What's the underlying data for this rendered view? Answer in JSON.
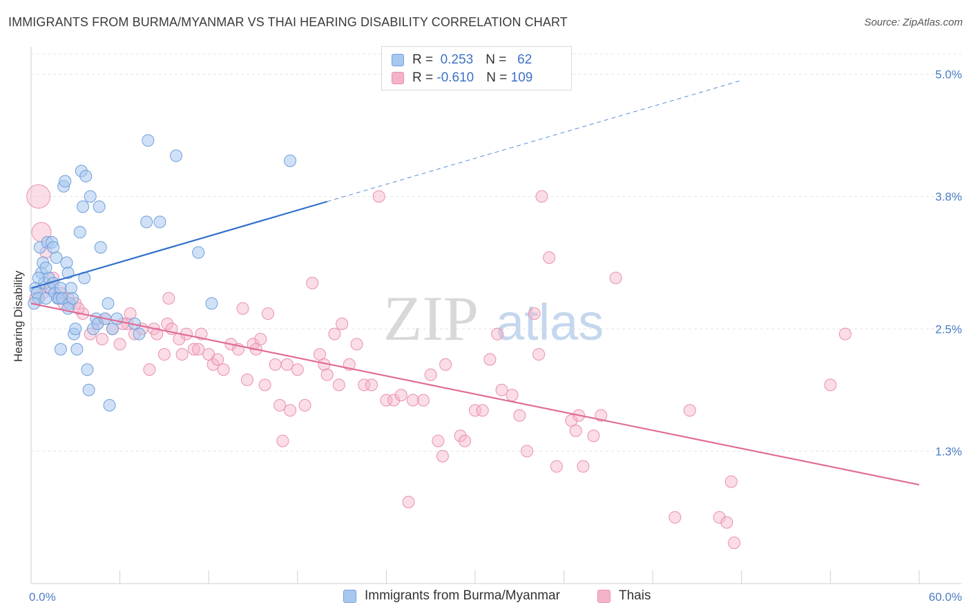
{
  "title": "IMMIGRANTS FROM BURMA/MYANMAR VS THAI HEARING DISABILITY CORRELATION CHART",
  "source": "Source: ZipAtlas.com",
  "watermark": {
    "zip": "ZIP",
    "atlas": "atlas"
  },
  "colors": {
    "burma_fill": "#a9c8f0",
    "burma_stroke": "#6f9fd8",
    "burma_line": "#2f6fcc",
    "thai_fill": "#f5b3c9",
    "thai_stroke": "#e98fae",
    "thai_line": "#e06c98",
    "axis_text": "#4a7cc4",
    "grid": "#e4e4e4"
  },
  "legend": {
    "rows": [
      {
        "r_label": "R = ",
        "r_value": " 0.253",
        "n_label": "N = ",
        "n_value": "  62"
      },
      {
        "r_label": "R = ",
        "r_value": "-0.610",
        "n_label": "N = ",
        "n_value": "109"
      }
    ]
  },
  "bottom_legend": {
    "series1": "Immigrants from Burma/Myanmar",
    "series2": "Thais"
  },
  "chart_data": {
    "type": "scatter",
    "xlabel": "",
    "ylabel": "Hearing Disability",
    "xlim": [
      0,
      60
    ],
    "ylim": [
      0.0,
      5.2
    ],
    "x_tick_labels": [
      "0.0%",
      "60.0%"
    ],
    "y_ticks": [
      1.3,
      2.5,
      3.8,
      5.0
    ],
    "y_tick_labels": [
      "1.3%",
      "2.5%",
      "3.8%",
      "5.0%"
    ],
    "grid": true,
    "legend_position": "top-center",
    "series": [
      {
        "name": "Immigrants from Burma/Myanmar",
        "trend": {
          "x0": 0,
          "y0": 2.9,
          "x1": 20,
          "y1": 3.75,
          "dashed_to_x": 48
        },
        "points": [
          [
            0.3,
            2.9
          ],
          [
            0.4,
            2.85
          ],
          [
            0.5,
            2.8
          ],
          [
            0.6,
            3.3
          ],
          [
            0.7,
            3.05
          ],
          [
            0.8,
            3.15
          ],
          [
            0.9,
            2.95
          ],
          [
            1.0,
            2.8
          ],
          [
            1.1,
            3.35
          ],
          [
            1.2,
            3.0
          ],
          [
            1.3,
            2.9
          ],
          [
            1.4,
            3.35
          ],
          [
            1.5,
            2.95
          ],
          [
            1.6,
            2.85
          ],
          [
            1.7,
            3.2
          ],
          [
            1.8,
            2.8
          ],
          [
            1.9,
            2.8
          ],
          [
            2.0,
            2.9
          ],
          [
            2.1,
            2.8
          ],
          [
            2.2,
            3.9
          ],
          [
            2.3,
            3.95
          ],
          [
            2.4,
            3.15
          ],
          [
            2.5,
            3.05
          ],
          [
            2.6,
            2.75
          ],
          [
            2.7,
            2.9
          ],
          [
            2.8,
            2.8
          ],
          [
            2.9,
            2.45
          ],
          [
            3.1,
            2.3
          ],
          [
            3.3,
            3.45
          ],
          [
            3.4,
            4.05
          ],
          [
            3.5,
            3.7
          ],
          [
            3.6,
            3.0
          ],
          [
            3.7,
            4.0
          ],
          [
            3.8,
            2.1
          ],
          [
            3.9,
            1.9
          ],
          [
            4.0,
            3.8
          ],
          [
            4.2,
            2.5
          ],
          [
            4.4,
            2.6
          ],
          [
            4.5,
            2.55
          ],
          [
            4.6,
            3.7
          ],
          [
            4.7,
            3.3
          ],
          [
            5.0,
            2.6
          ],
          [
            5.2,
            2.75
          ],
          [
            5.3,
            1.75
          ],
          [
            5.5,
            2.5
          ],
          [
            5.8,
            2.6
          ],
          [
            7.0,
            2.55
          ],
          [
            7.3,
            2.45
          ],
          [
            7.9,
            4.35
          ],
          [
            7.8,
            3.55
          ],
          [
            8.7,
            3.55
          ],
          [
            9.8,
            4.2
          ],
          [
            11.3,
            3.25
          ],
          [
            12.2,
            2.75
          ],
          [
            17.5,
            4.15
          ],
          [
            0.2,
            2.75
          ],
          [
            0.5,
            3.0
          ],
          [
            1.0,
            3.1
          ],
          [
            2.0,
            2.3
          ],
          [
            3.0,
            2.5
          ],
          [
            2.5,
            2.7
          ],
          [
            1.5,
            3.3
          ]
        ]
      },
      {
        "name": "Thais",
        "trend": {
          "x0": 0,
          "y0": 2.75,
          "x1": 60,
          "y1": 0.97
        },
        "points": [
          [
            0.5,
            3.8
          ],
          [
            0.7,
            3.45
          ],
          [
            1.0,
            3.25
          ],
          [
            1.5,
            3.0
          ],
          [
            2.0,
            2.85
          ],
          [
            2.5,
            2.8
          ],
          [
            3.0,
            2.75
          ],
          [
            3.5,
            2.65
          ],
          [
            4.0,
            2.45
          ],
          [
            4.5,
            2.55
          ],
          [
            5.0,
            2.6
          ],
          [
            5.5,
            2.5
          ],
          [
            6.0,
            2.35
          ],
          [
            6.5,
            2.55
          ],
          [
            6.7,
            2.65
          ],
          [
            7.0,
            2.45
          ],
          [
            7.5,
            2.5
          ],
          [
            8.0,
            2.1
          ],
          [
            8.3,
            2.5
          ],
          [
            8.5,
            2.45
          ],
          [
            9.0,
            2.25
          ],
          [
            9.2,
            2.55
          ],
          [
            9.3,
            2.8
          ],
          [
            9.5,
            2.5
          ],
          [
            10.0,
            2.4
          ],
          [
            10.2,
            2.25
          ],
          [
            10.5,
            2.45
          ],
          [
            11.0,
            2.3
          ],
          [
            11.3,
            2.3
          ],
          [
            11.5,
            2.45
          ],
          [
            12.0,
            2.25
          ],
          [
            12.3,
            2.15
          ],
          [
            12.6,
            2.2
          ],
          [
            13.0,
            2.1
          ],
          [
            13.5,
            2.35
          ],
          [
            14.0,
            2.3
          ],
          [
            14.3,
            2.7
          ],
          [
            14.6,
            2.0
          ],
          [
            15.0,
            2.35
          ],
          [
            15.2,
            2.3
          ],
          [
            15.5,
            2.4
          ],
          [
            15.8,
            1.95
          ],
          [
            16.0,
            2.65
          ],
          [
            16.5,
            2.15
          ],
          [
            16.8,
            1.75
          ],
          [
            17.0,
            1.4
          ],
          [
            17.3,
            2.15
          ],
          [
            17.5,
            1.7
          ],
          [
            18.0,
            2.1
          ],
          [
            18.5,
            1.75
          ],
          [
            19.0,
            2.95
          ],
          [
            19.5,
            2.25
          ],
          [
            19.8,
            2.15
          ],
          [
            20.0,
            2.05
          ],
          [
            20.5,
            2.45
          ],
          [
            20.8,
            1.95
          ],
          [
            21.0,
            2.55
          ],
          [
            21.5,
            2.15
          ],
          [
            22.0,
            2.35
          ],
          [
            22.5,
            1.95
          ],
          [
            23.0,
            1.95
          ],
          [
            23.5,
            3.8
          ],
          [
            24.0,
            1.8
          ],
          [
            24.5,
            1.8
          ],
          [
            25.0,
            1.85
          ],
          [
            25.5,
            0.8
          ],
          [
            25.8,
            1.8
          ],
          [
            26.5,
            1.8
          ],
          [
            27.0,
            2.05
          ],
          [
            27.5,
            1.4
          ],
          [
            27.8,
            1.25
          ],
          [
            28.0,
            2.15
          ],
          [
            29.0,
            1.45
          ],
          [
            29.3,
            1.4
          ],
          [
            30.0,
            1.7
          ],
          [
            30.5,
            1.7
          ],
          [
            31.0,
            2.2
          ],
          [
            31.5,
            2.45
          ],
          [
            31.8,
            1.9
          ],
          [
            32.5,
            1.85
          ],
          [
            33.0,
            1.65
          ],
          [
            33.5,
            1.3
          ],
          [
            34.0,
            2.65
          ],
          [
            34.3,
            2.25
          ],
          [
            34.5,
            3.8
          ],
          [
            35.0,
            3.2
          ],
          [
            35.5,
            1.15
          ],
          [
            36.5,
            1.6
          ],
          [
            36.8,
            1.5
          ],
          [
            37.0,
            1.65
          ],
          [
            37.3,
            1.15
          ],
          [
            38.0,
            1.45
          ],
          [
            38.5,
            1.65
          ],
          [
            39.5,
            3.0
          ],
          [
            43.5,
            0.65
          ],
          [
            44.5,
            1.7
          ],
          [
            46.5,
            0.65
          ],
          [
            47.0,
            0.6
          ],
          [
            47.3,
            1.0
          ],
          [
            47.5,
            0.4
          ],
          [
            54.0,
            1.95
          ],
          [
            55.0,
            2.45
          ],
          [
            0.3,
            2.8
          ],
          [
            0.8,
            2.85
          ],
          [
            1.2,
            2.9
          ],
          [
            2.2,
            2.75
          ],
          [
            3.2,
            2.7
          ],
          [
            4.8,
            2.4
          ],
          [
            6.2,
            2.55
          ]
        ]
      }
    ]
  }
}
